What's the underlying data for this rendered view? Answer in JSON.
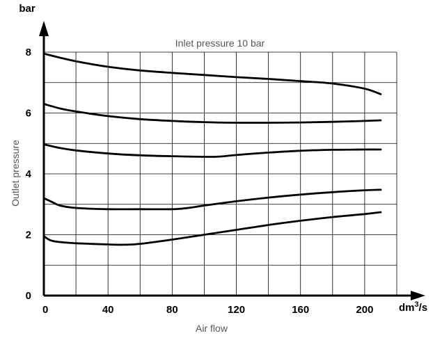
{
  "chart_data": {
    "type": "line",
    "title": "Inlet pressure 10 bar",
    "xlabel": "Air flow",
    "ylabel": "Outlet pressure",
    "x_unit": "dm",
    "x_unit_sup": "3",
    "x_unit_tail": "/s",
    "y_unit": "bar",
    "xlim": [
      0,
      220
    ],
    "ylim": [
      0,
      8
    ],
    "x_ticks": [
      0,
      40,
      80,
      120,
      160,
      200
    ],
    "y_ticks": [
      0,
      2,
      4,
      6,
      8
    ],
    "x_grid_step": 20,
    "y_grid_step": 1,
    "grid": true,
    "series": [
      {
        "x": [
          0,
          10,
          20,
          40,
          60,
          80,
          100,
          120,
          140,
          160,
          180,
          200,
          210
        ],
        "y": [
          7.95,
          7.82,
          7.7,
          7.52,
          7.4,
          7.32,
          7.25,
          7.18,
          7.12,
          7.05,
          6.97,
          6.8,
          6.62
        ]
      },
      {
        "x": [
          0,
          10,
          20,
          40,
          60,
          80,
          100,
          120,
          140,
          160,
          180,
          200,
          210
        ],
        "y": [
          6.3,
          6.15,
          6.05,
          5.9,
          5.8,
          5.74,
          5.7,
          5.68,
          5.68,
          5.69,
          5.71,
          5.74,
          5.76
        ]
      },
      {
        "x": [
          0,
          10,
          20,
          40,
          60,
          80,
          100,
          110,
          120,
          140,
          160,
          180,
          200,
          210
        ],
        "y": [
          4.97,
          4.85,
          4.77,
          4.67,
          4.61,
          4.58,
          4.56,
          4.57,
          4.62,
          4.7,
          4.76,
          4.79,
          4.8,
          4.8
        ]
      },
      {
        "x": [
          0,
          5,
          10,
          20,
          40,
          60,
          80,
          90,
          100,
          120,
          140,
          160,
          180,
          200,
          210
        ],
        "y": [
          3.2,
          3.08,
          2.96,
          2.88,
          2.84,
          2.84,
          2.84,
          2.88,
          2.96,
          3.1,
          3.22,
          3.32,
          3.4,
          3.46,
          3.48
        ]
      },
      {
        "x": [
          0,
          4,
          10,
          20,
          40,
          50,
          60,
          80,
          100,
          120,
          140,
          160,
          180,
          200,
          210
        ],
        "y": [
          1.95,
          1.82,
          1.76,
          1.72,
          1.68,
          1.67,
          1.7,
          1.84,
          2.0,
          2.16,
          2.32,
          2.46,
          2.58,
          2.68,
          2.74
        ]
      }
    ]
  }
}
